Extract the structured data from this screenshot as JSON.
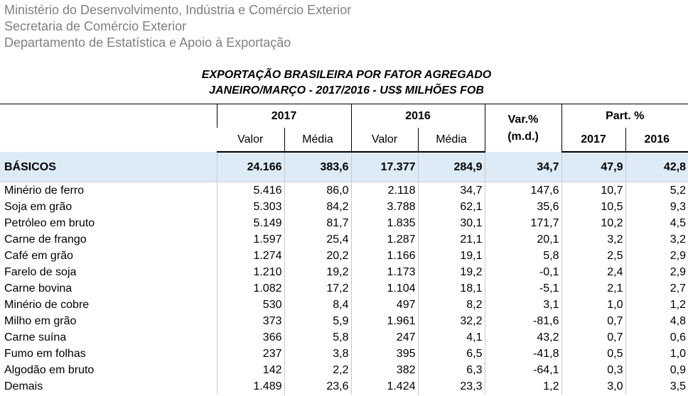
{
  "header": {
    "lines": [
      "Ministério do Desenvolvimento, Indústria e Comércio Exterior",
      "Secretaria de Comércio Exterior",
      "Departamento de Estatística e Apoio à Exportação"
    ]
  },
  "title": {
    "lines": [
      "EXPORTAÇÃO BRASILEIRA POR FATOR AGREGADO",
      "JANEIRO/MARÇO - 2017/2016 - US$ MILHÕES FOB"
    ]
  },
  "table": {
    "header_top": [
      "2017",
      "2016",
      "Var.%",
      "(m.d.)",
      "Part. %"
    ],
    "header_sub": [
      "Valor",
      "Média",
      "Valor",
      "Média",
      "2017",
      "2016"
    ],
    "rows": [
      [
        "BÁSICOS",
        "24.166",
        "383,6",
        "17.377",
        "284,9",
        "34,7",
        "47,9",
        "42,8"
      ],
      [
        "Minério de ferro",
        "5.416",
        "86,0",
        "2.118",
        "34,7",
        "147,6",
        "10,7",
        "5,2"
      ],
      [
        "Soja em grão",
        "5.303",
        "84,2",
        "3.788",
        "62,1",
        "35,6",
        "10,5",
        "9,3"
      ],
      [
        "Petróleo em bruto",
        "5.149",
        "81,7",
        "1.835",
        "30,1",
        "171,7",
        "10,2",
        "4,5"
      ],
      [
        "Carne de frango",
        "1.597",
        "25,4",
        "1.287",
        "21,1",
        "20,1",
        "3,2",
        "3,2"
      ],
      [
        "Café em grão",
        "1.274",
        "20,2",
        "1.166",
        "19,1",
        "5,8",
        "2,5",
        "2,9"
      ],
      [
        "Farelo de soja",
        "1.210",
        "19,2",
        "1.173",
        "19,2",
        "-0,1",
        "2,4",
        "2,9"
      ],
      [
        "Carne bovina",
        "1.082",
        "17,2",
        "1.104",
        "18,1",
        "-5,1",
        "2,1",
        "2,7"
      ],
      [
        "Minério de cobre",
        "530",
        "8,4",
        "497",
        "8,2",
        "3,1",
        "1,0",
        "1,2"
      ],
      [
        "Milho em grão",
        "373",
        "5,9",
        "1.961",
        "32,2",
        "-81,6",
        "0,7",
        "4,8"
      ],
      [
        "Carne suína",
        "366",
        "5,8",
        "247",
        "4,1",
        "43,2",
        "0,7",
        "0,6"
      ],
      [
        "Fumo em folhas",
        "237",
        "3,8",
        "395",
        "6,5",
        "-41,8",
        "0,5",
        "1,0"
      ],
      [
        "Algodão em bruto",
        "142",
        "2,2",
        "382",
        "6,3",
        "-64,1",
        "0,3",
        "0,9"
      ],
      [
        "Demais",
        "1.489",
        "23,6",
        "1.424",
        "23,3",
        "1,2",
        "3,0",
        "3,5"
      ]
    ]
  }
}
